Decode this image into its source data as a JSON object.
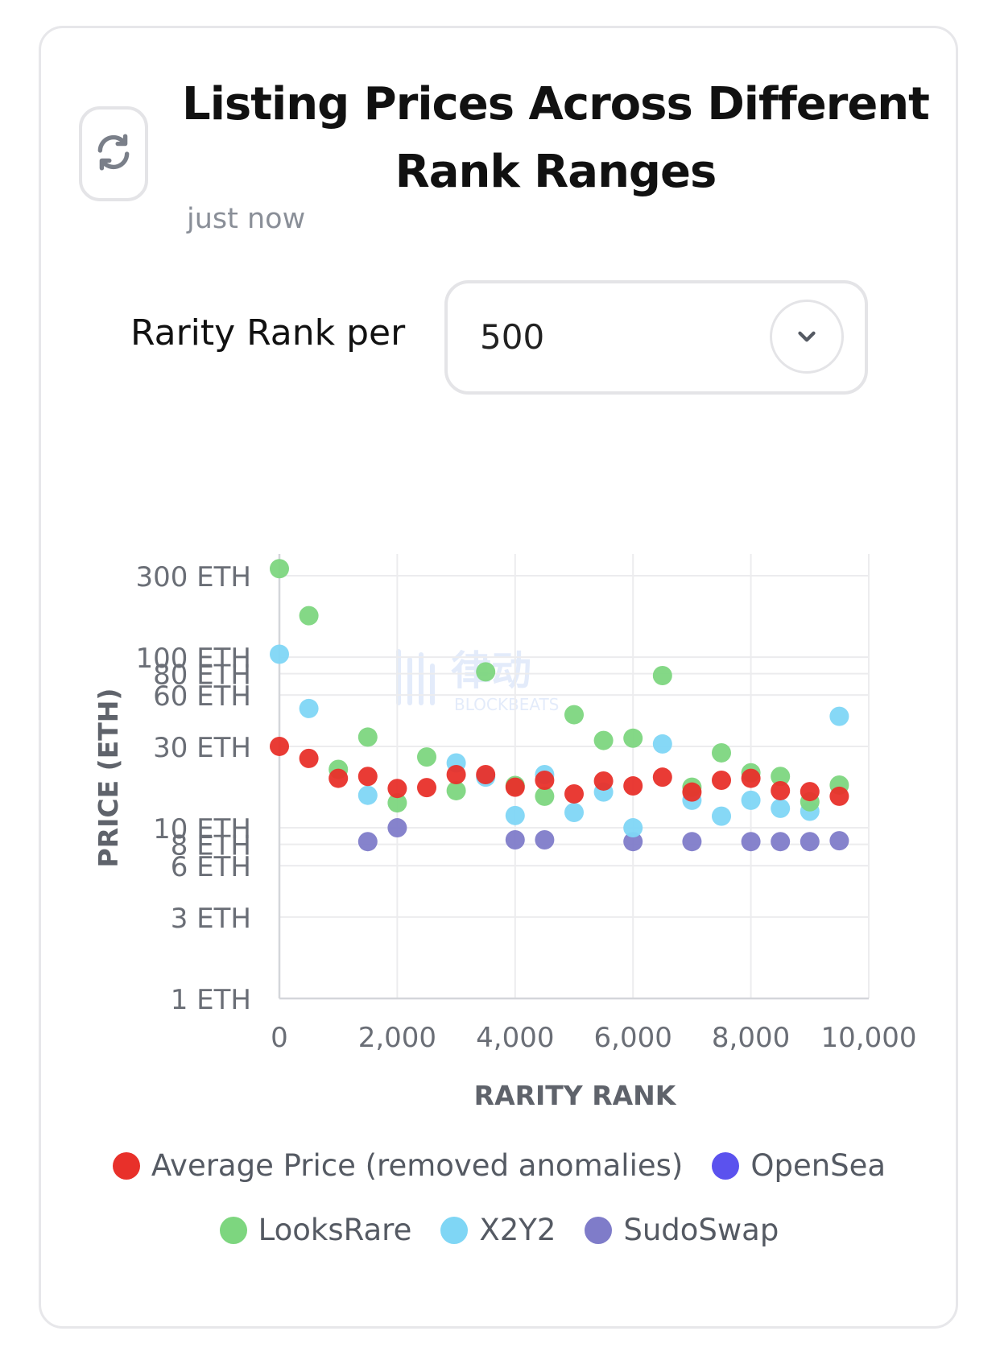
{
  "header": {
    "title_line1": "Listing Prices Across Different",
    "title_line2": "Rank Ranges",
    "timestamp": "just now",
    "refresh_icon": "refresh-icon"
  },
  "controls": {
    "rank_label": "Rarity Rank per",
    "rank_select_value": "500",
    "chevron_icon": "chevron-down-icon"
  },
  "watermark": {
    "text": "律动",
    "subtext": "BLOCKBEATS"
  },
  "chart_data": {
    "type": "scatter",
    "title": "",
    "xlabel": "RARITY RANK",
    "ylabel": "PRICE (ETH)",
    "xlim": [
      0,
      10000
    ],
    "ylim": [
      1,
      350
    ],
    "yscale": "log",
    "x_ticks": [
      0,
      2000,
      4000,
      6000,
      8000,
      10000
    ],
    "x_tick_labels": [
      "0",
      "2,000",
      "4,000",
      "6,000",
      "8,000",
      "10,000"
    ],
    "y_ticks": [
      1,
      3,
      6,
      8,
      10,
      30,
      60,
      80,
      100,
      300
    ],
    "y_tick_labels": [
      "1 ETH",
      "3 ETH",
      "6 ETH",
      "8 ETH",
      "10 ETH",
      "30 ETH",
      "60 ETH",
      "80 ETH",
      "100 ETH",
      "300 ETH"
    ],
    "grid": true,
    "legend_position": "bottom",
    "series": [
      {
        "name": "Average Price (removed anomalies)",
        "color": "#e8302a",
        "points": [
          [
            0,
            30
          ],
          [
            500,
            25.5
          ],
          [
            1000,
            19.5
          ],
          [
            1500,
            20
          ],
          [
            2000,
            17
          ],
          [
            2500,
            17.2
          ],
          [
            3000,
            20.5
          ],
          [
            3500,
            20.5
          ],
          [
            4000,
            17.3
          ],
          [
            4500,
            19
          ],
          [
            5000,
            15.8
          ],
          [
            5500,
            18.8
          ],
          [
            6000,
            17.6
          ],
          [
            6500,
            19.8
          ],
          [
            7000,
            16.2
          ],
          [
            7500,
            19
          ],
          [
            8000,
            19.5
          ],
          [
            8500,
            16.5
          ],
          [
            9000,
            16.3
          ],
          [
            9500,
            15.3
          ]
        ]
      },
      {
        "name": "OpenSea",
        "color": "#6054e8",
        "points": []
      },
      {
        "name": "LooksRare",
        "color": "#7dd67f",
        "points": [
          [
            0,
            330
          ],
          [
            500,
            175
          ],
          [
            1000,
            22
          ],
          [
            1500,
            34
          ],
          [
            2000,
            14
          ],
          [
            2500,
            26
          ],
          [
            3000,
            16.5
          ],
          [
            3500,
            82
          ],
          [
            4000,
            17.7
          ],
          [
            4500,
            15.3
          ],
          [
            5000,
            46
          ],
          [
            5500,
            32.5
          ],
          [
            6000,
            33.5
          ],
          [
            6500,
            78
          ],
          [
            7000,
            17.3
          ],
          [
            7500,
            27.5
          ],
          [
            8000,
            21
          ],
          [
            8500,
            20
          ],
          [
            9000,
            14.2
          ],
          [
            9500,
            17.8
          ]
        ]
      },
      {
        "name": "X2Y2",
        "color": "#7fd6f5",
        "points": [
          [
            0,
            104
          ],
          [
            500,
            50
          ],
          [
            1500,
            15.5
          ],
          [
            3000,
            24
          ],
          [
            3500,
            19.8
          ],
          [
            4000,
            11.8
          ],
          [
            4500,
            20.5
          ],
          [
            5000,
            12.3
          ],
          [
            5500,
            16.2
          ],
          [
            6000,
            10
          ],
          [
            6500,
            31
          ],
          [
            7000,
            14.5
          ],
          [
            7500,
            11.7
          ],
          [
            8000,
            14.5
          ],
          [
            8500,
            13
          ],
          [
            9000,
            12.5
          ],
          [
            9500,
            45
          ]
        ]
      },
      {
        "name": "SudoSwap",
        "color": "#7f7cc9",
        "points": [
          [
            1500,
            8.3
          ],
          [
            2000,
            10
          ],
          [
            4000,
            8.5
          ],
          [
            4500,
            8.5
          ],
          [
            6000,
            8.3
          ],
          [
            7000,
            8.3
          ],
          [
            8000,
            8.3
          ],
          [
            8500,
            8.3
          ],
          [
            9000,
            8.3
          ],
          [
            9500,
            8.4
          ]
        ]
      }
    ]
  },
  "legend": {
    "row1": [
      {
        "label": "Average Price (removed anomalies)",
        "color": "#e8302a"
      },
      {
        "label": "OpenSea",
        "color": "#5b52ee"
      }
    ],
    "row2": [
      {
        "label": "LooksRare",
        "color": "#7dd67f"
      },
      {
        "label": "X2Y2",
        "color": "#7fd6f5"
      },
      {
        "label": "SudoSwap",
        "color": "#7f7cc9"
      }
    ]
  }
}
